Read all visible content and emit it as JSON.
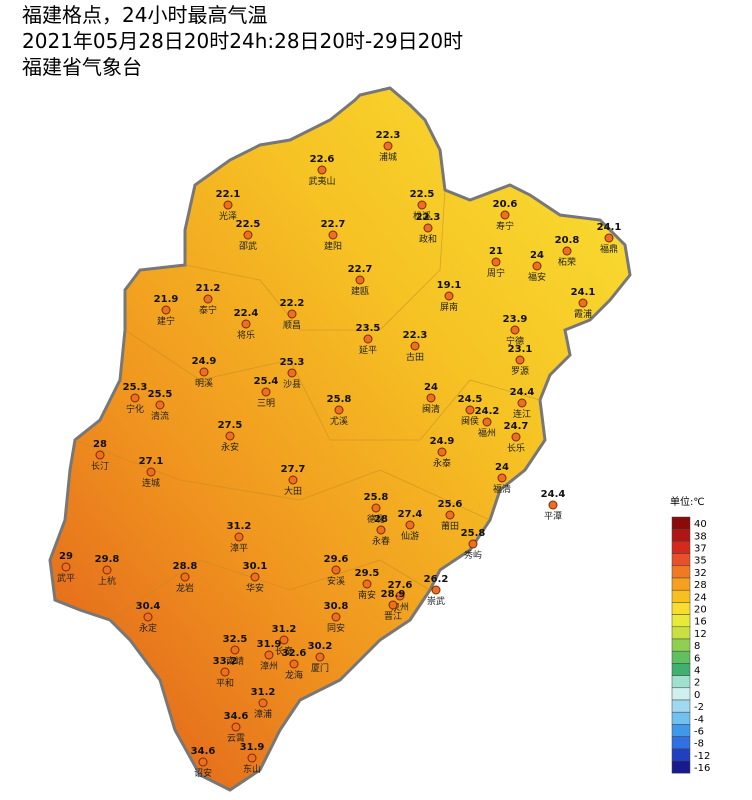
{
  "header": {
    "title": "福建格点，24小时最高气温",
    "subtitle": "2021年05月28日20时24h:28日20时-29日20时",
    "source": "福建省气象台"
  },
  "stations": [
    {
      "name": "浦城",
      "value": 22.3
    },
    {
      "name": "武夷山",
      "value": 22.6
    },
    {
      "name": "光泽",
      "value": 22.1
    },
    {
      "name": "松溪",
      "value": 22.5
    },
    {
      "name": "政和",
      "value": 22.3
    },
    {
      "name": "邵武",
      "value": 22.5
    },
    {
      "name": "建阳",
      "value": 22.7
    },
    {
      "name": "寿宁",
      "value": 20.6
    },
    {
      "name": "福鼎",
      "value": 24.1
    },
    {
      "name": "柘荣",
      "value": 20.8
    },
    {
      "name": "周宁",
      "value": 21
    },
    {
      "name": "福安",
      "value": 24
    },
    {
      "name": "建瓯",
      "value": 22.7
    },
    {
      "name": "建宁",
      "value": 21.9
    },
    {
      "name": "泰宁",
      "value": 21.2
    },
    {
      "name": "将乐",
      "value": 22.4
    },
    {
      "name": "顺昌",
      "value": 22.2
    },
    {
      "name": "屏南",
      "value": 19.1
    },
    {
      "name": "霞浦",
      "value": 24.1
    },
    {
      "name": "宁德",
      "value": 23.9
    },
    {
      "name": "延平",
      "value": 23.5
    },
    {
      "name": "古田",
      "value": 22.3
    },
    {
      "name": "罗源",
      "value": 23.1
    },
    {
      "name": "明溪",
      "value": 24.9
    },
    {
      "name": "沙县",
      "value": 25.3
    },
    {
      "name": "宁化",
      "value": 25.3
    },
    {
      "name": "清流",
      "value": 25.5
    },
    {
      "name": "三明",
      "value": 25.4
    },
    {
      "name": "尤溪",
      "value": 25.8
    },
    {
      "name": "闽清",
      "value": 24
    },
    {
      "name": "闽侯",
      "value": 24.5
    },
    {
      "name": "连江",
      "value": 24.4
    },
    {
      "name": "福州",
      "value": 24.2
    },
    {
      "name": "长乐",
      "value": 24.7
    },
    {
      "name": "长汀",
      "value": 28
    },
    {
      "name": "永安",
      "value": 27.5
    },
    {
      "name": "永泰",
      "value": 24.9
    },
    {
      "name": "连城",
      "value": 27.1
    },
    {
      "name": "大田",
      "value": 27.7
    },
    {
      "name": "福清",
      "value": 24
    },
    {
      "name": "平潭",
      "value": 24.4
    },
    {
      "name": "德化",
      "value": 25.8
    },
    {
      "name": "永春",
      "value": 28
    },
    {
      "name": "仙游",
      "value": 27.4
    },
    {
      "name": "莆田",
      "value": 25.6
    },
    {
      "name": "秀屿",
      "value": 25.8
    },
    {
      "name": "漳平",
      "value": 31.2
    },
    {
      "name": "武平",
      "value": 29
    },
    {
      "name": "上杭",
      "value": 29.8
    },
    {
      "name": "龙岩",
      "value": 28.8
    },
    {
      "name": "华安",
      "value": 30.1
    },
    {
      "name": "安溪",
      "value": 29.6
    },
    {
      "name": "南安",
      "value": 29.5
    },
    {
      "name": "泉州",
      "value": 27.6
    },
    {
      "name": "晋江",
      "value": 28.9
    },
    {
      "name": "崇武",
      "value": 26.2
    },
    {
      "name": "永定",
      "value": 30.4
    },
    {
      "name": "同安",
      "value": 30.8
    },
    {
      "name": "长泰",
      "value": 31.2
    },
    {
      "name": "南靖",
      "value": 32.5
    },
    {
      "name": "漳州",
      "value": 31.9
    },
    {
      "name": "龙海",
      "value": 32.6
    },
    {
      "name": "厦门",
      "value": 30.2
    },
    {
      "name": "平和",
      "value": 33.2
    },
    {
      "name": "漳浦",
      "value": 31.2
    },
    {
      "name": "云霄",
      "value": 34.6
    },
    {
      "name": "东山",
      "value": 31.9
    },
    {
      "name": "诏安",
      "value": 34.6
    }
  ],
  "legend": {
    "unit": "单位:℃",
    "items": [
      {
        "value": 40,
        "color": "#8b0a0a"
      },
      {
        "value": 38,
        "color": "#b01616"
      },
      {
        "value": 37,
        "color": "#d42a1e"
      },
      {
        "value": 35,
        "color": "#e8502a"
      },
      {
        "value": 32,
        "color": "#f07a22"
      },
      {
        "value": 28,
        "color": "#f5a020"
      },
      {
        "value": 24,
        "color": "#f7c020"
      },
      {
        "value": 20,
        "color": "#f9dc30"
      },
      {
        "value": 16,
        "color": "#e8ea3a"
      },
      {
        "value": 12,
        "color": "#c8e040"
      },
      {
        "value": 8,
        "color": "#90d050"
      },
      {
        "value": 6,
        "color": "#60c060"
      },
      {
        "value": 4,
        "color": "#40b070"
      },
      {
        "value": 2,
        "color": "#a0e0d0"
      },
      {
        "value": 0,
        "color": "#d0f0f0"
      },
      {
        "value": -2,
        "color": "#a0d8f0"
      },
      {
        "value": -4,
        "color": "#70c0f0"
      },
      {
        "value": -6,
        "color": "#4098e8"
      },
      {
        "value": -8,
        "color": "#3070e0"
      },
      {
        "value": -12,
        "color": "#2040c0"
      },
      {
        "value": -16,
        "color": "#1a1a90"
      }
    ]
  }
}
